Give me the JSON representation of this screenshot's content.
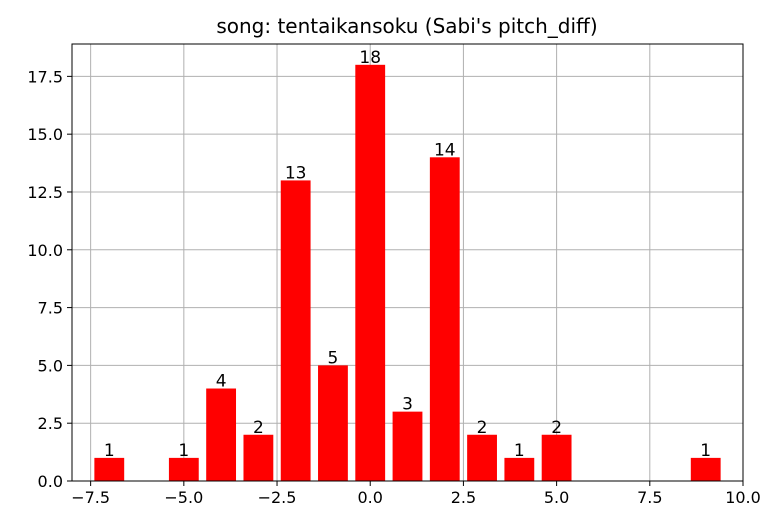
{
  "chart_data": {
    "type": "bar",
    "title": "song: tentaikansoku (Sabi's pitch_diff)",
    "xlabel": "",
    "ylabel": "",
    "x": [
      -7,
      -5,
      -4,
      -3,
      -2,
      -1,
      0,
      1,
      2,
      3,
      4,
      5,
      9
    ],
    "values": [
      1,
      1,
      4,
      2,
      13,
      5,
      18,
      3,
      14,
      2,
      1,
      2,
      1
    ],
    "xlim": [
      -8.0,
      10.0
    ],
    "ylim": [
      0,
      18.9
    ],
    "x_ticks": [
      "−7.5",
      "−5.0",
      "−2.5",
      "0.0",
      "2.5",
      "5.0",
      "7.5",
      "10.0"
    ],
    "y_ticks": [
      "0.0",
      "2.5",
      "5.0",
      "7.5",
      "10.0",
      "12.5",
      "15.0",
      "17.5"
    ],
    "grid": true,
    "bar_color": "#ff0000",
    "grid_color": "#b0b0b0"
  }
}
